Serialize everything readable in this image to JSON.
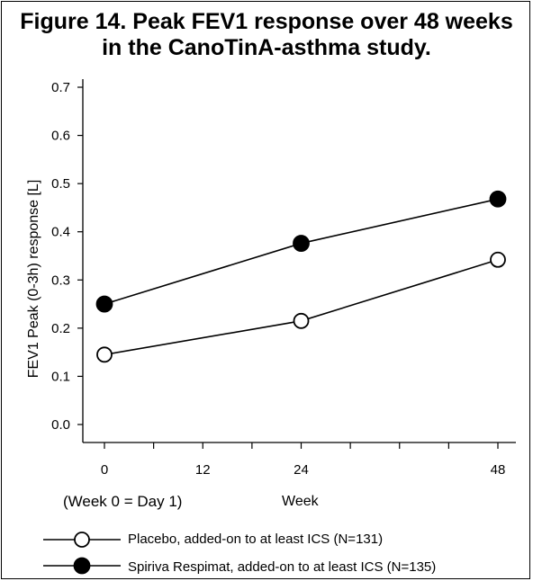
{
  "figure": {
    "title_line1": "Figure 14. Peak FEV1 response over 48 weeks",
    "title_line2": "in the CanoTinA-asthma study.",
    "note": "(Week 0 = Day 1)"
  },
  "chart_data": {
    "type": "line",
    "title": "Figure 14. Peak FEV1 response over 48 weeks in the CanoTinA-asthma study.",
    "xlabel": "Week",
    "ylabel": "FEV1 Peak (0-3h) response [L]",
    "x_ticks": [
      0,
      12,
      24,
      48
    ],
    "x_tick_labels": [
      "0",
      "12",
      "24",
      "48"
    ],
    "y_ticks": [
      0.0,
      0.1,
      0.2,
      0.3,
      0.4,
      0.5,
      0.6,
      0.7
    ],
    "y_tick_labels": [
      "0.0",
      "0.1",
      "0.2",
      "0.3",
      "0.4",
      "0.5",
      "0.6",
      "0.7"
    ],
    "xlim": [
      0,
      48
    ],
    "ylim": [
      -0.04,
      0.72
    ],
    "grid": false,
    "legend_position": "bottom",
    "series": [
      {
        "name": "Placebo, added-on to at least ICS (N=131)",
        "marker": "open-circle",
        "x": [
          0,
          24,
          48
        ],
        "y": [
          0.145,
          0.215,
          0.342
        ]
      },
      {
        "name": "Spiriva Respimat, added-on to at least ICS (N=135)",
        "marker": "filled-circle",
        "x": [
          0,
          24,
          48
        ],
        "y": [
          0.25,
          0.376,
          0.468
        ]
      }
    ]
  }
}
